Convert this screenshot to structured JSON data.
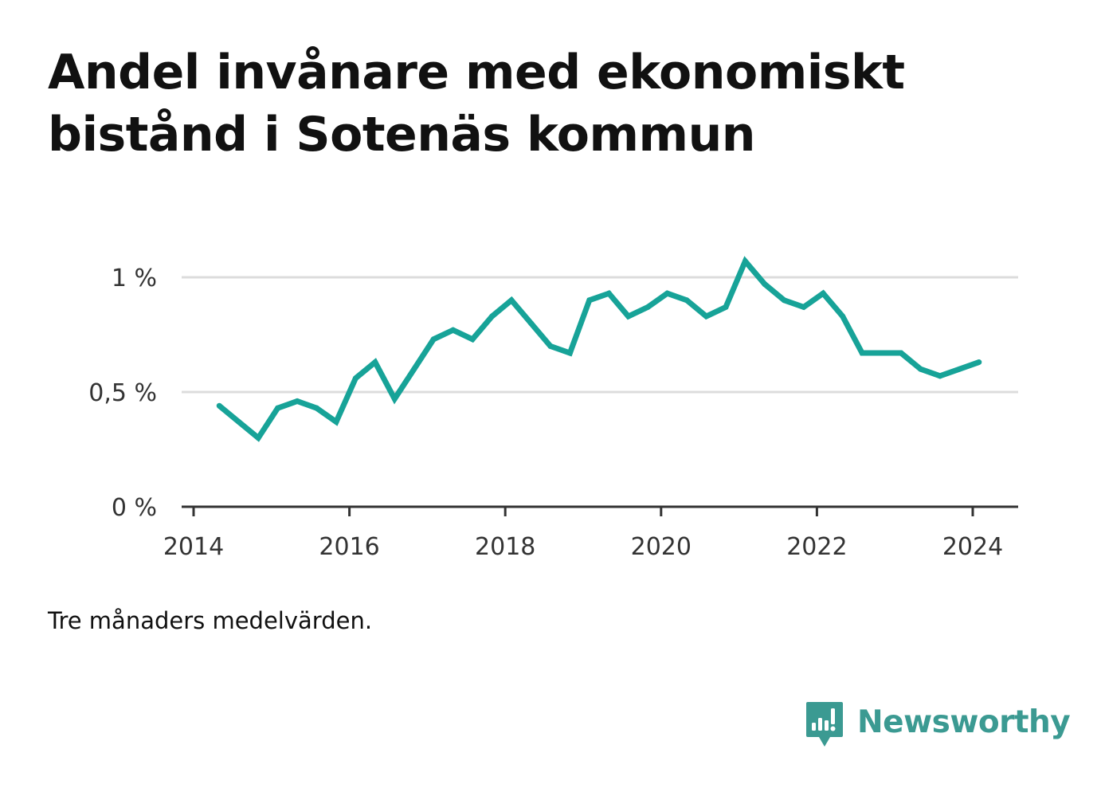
{
  "title": "Andel invånare med ekonomiskt bistånd i Sotenäs kommun",
  "note": "Tre månaders medelvärden.",
  "brand": {
    "name": "Newsworthy",
    "logo_icon": "newsworthy-bar-chart-speech-bubble-icon",
    "color": "#3b9a92"
  },
  "chart_data": {
    "type": "line",
    "title": "Andel invånare med ekonomiskt bistånd i Sotenäs kommun",
    "xlabel": "",
    "ylabel": "",
    "x_ticks": [
      "2014",
      "2016",
      "2018",
      "2020",
      "2022",
      "2024"
    ],
    "y_ticks": [
      {
        "value": 0,
        "label": "0 %"
      },
      {
        "value": 0.5,
        "label": "0,5 %"
      },
      {
        "value": 1,
        "label": "1 %"
      }
    ],
    "xlim": [
      2013.97,
      2024.6
    ],
    "ylim": [
      0,
      1.0
    ],
    "grid": true,
    "series_color": "#17a398",
    "series": [
      {
        "values": [
          {
            "x": 2014.33,
            "y": 0.44
          },
          {
            "x": 2014.58,
            "y": 0.37
          },
          {
            "x": 2014.83,
            "y": 0.3
          },
          {
            "x": 2015.08,
            "y": 0.43
          },
          {
            "x": 2015.33,
            "y": 0.46
          },
          {
            "x": 2015.58,
            "y": 0.43
          },
          {
            "x": 2015.83,
            "y": 0.37
          },
          {
            "x": 2016.08,
            "y": 0.56
          },
          {
            "x": 2016.33,
            "y": 0.63
          },
          {
            "x": 2016.58,
            "y": 0.47
          },
          {
            "x": 2016.83,
            "y": 0.6
          },
          {
            "x": 2017.08,
            "y": 0.73
          },
          {
            "x": 2017.33,
            "y": 0.77
          },
          {
            "x": 2017.58,
            "y": 0.73
          },
          {
            "x": 2017.83,
            "y": 0.83
          },
          {
            "x": 2018.08,
            "y": 0.9
          },
          {
            "x": 2018.33,
            "y": 0.8
          },
          {
            "x": 2018.58,
            "y": 0.7
          },
          {
            "x": 2018.83,
            "y": 0.67
          },
          {
            "x": 2019.08,
            "y": 0.9
          },
          {
            "x": 2019.33,
            "y": 0.93
          },
          {
            "x": 2019.58,
            "y": 0.83
          },
          {
            "x": 2019.83,
            "y": 0.87
          },
          {
            "x": 2020.08,
            "y": 0.93
          },
          {
            "x": 2020.33,
            "y": 0.9
          },
          {
            "x": 2020.58,
            "y": 0.83
          },
          {
            "x": 2020.83,
            "y": 0.87
          },
          {
            "x": 2021.08,
            "y": 1.07
          },
          {
            "x": 2021.33,
            "y": 0.97
          },
          {
            "x": 2021.58,
            "y": 0.9
          },
          {
            "x": 2021.83,
            "y": 0.87
          },
          {
            "x": 2022.08,
            "y": 0.93
          },
          {
            "x": 2022.33,
            "y": 0.83
          },
          {
            "x": 2022.58,
            "y": 0.67
          },
          {
            "x": 2022.83,
            "y": 0.67
          },
          {
            "x": 2023.08,
            "y": 0.67
          },
          {
            "x": 2023.33,
            "y": 0.6
          },
          {
            "x": 2023.58,
            "y": 0.57
          },
          {
            "x": 2023.83,
            "y": 0.6
          },
          {
            "x": 2024.08,
            "y": 0.63
          }
        ]
      }
    ]
  }
}
